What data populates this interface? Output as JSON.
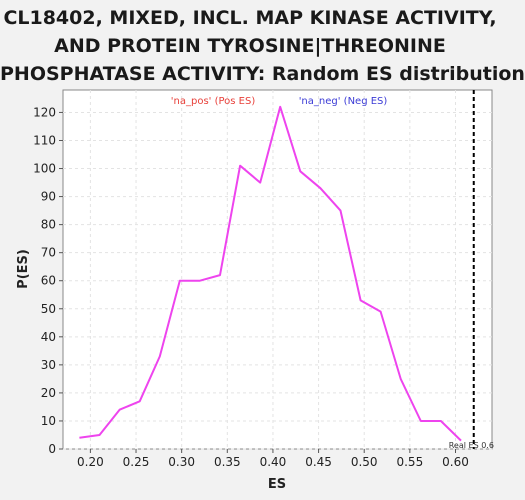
{
  "title_lines": [
    "CL18402, MIXED, INCL. MAP KINASE ACTIVITY,",
    "AND PROTEIN TYROSINE|THREONINE",
    "PHOSPHATASE ACTIVITY: Random ES distribution"
  ],
  "chart_data": {
    "type": "line",
    "title": "CL18402, MIXED, INCL. MAP KINASE ACTIVITY, AND PROTEIN TYROSINE|THREONINE PHOSPHATASE ACTIVITY: Random ES distribution",
    "xlabel": "ES",
    "ylabel": "P(ES)",
    "xlim": [
      0.17,
      0.64
    ],
    "ylim": [
      0,
      128
    ],
    "xticks": [
      0.2,
      0.25,
      0.3,
      0.35,
      0.4,
      0.45,
      0.5,
      0.55,
      0.6
    ],
    "xtick_labels": [
      "0.20",
      "0.25",
      "0.30",
      "0.35",
      "0.40",
      "0.45",
      "0.50",
      "0.55",
      "0.60"
    ],
    "yticks": [
      0,
      10,
      20,
      30,
      40,
      50,
      60,
      70,
      80,
      90,
      100,
      110,
      120
    ],
    "grid": true,
    "series": [
      {
        "color": "#ee44ee",
        "x": [
          0.188,
          0.21,
          0.232,
          0.254,
          0.276,
          0.298,
          0.32,
          0.342,
          0.364,
          0.386,
          0.408,
          0.43,
          0.452,
          0.474,
          0.496,
          0.518,
          0.54,
          0.562,
          0.584,
          0.606
        ],
        "y": [
          4,
          5,
          14,
          17,
          33,
          60,
          60,
          62,
          101,
          95,
          122,
          99,
          93,
          85,
          53,
          49,
          25,
          10,
          10,
          3
        ]
      }
    ],
    "legend": [
      {
        "label": "'na_pos' (Pos ES)",
        "color": "#e8403a"
      },
      {
        "label": "'na_neg' (Neg ES)",
        "color": "#3b3bd6"
      }
    ],
    "reference_line": {
      "x": 0.62,
      "label": "Real ES 0.6",
      "style": "dashed",
      "color": "#000000"
    }
  }
}
